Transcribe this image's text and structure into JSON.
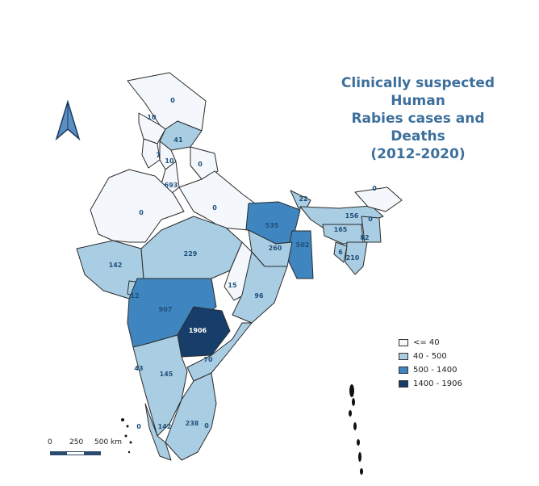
{
  "title": {
    "line1": "Clinically suspected Human",
    "line2": "Rabies cases and Deaths",
    "line3": "(2012-2020)"
  },
  "colors": {
    "class_1": "#f4f8fc",
    "class_2": "#a9cde3",
    "class_3": "#3f86c1",
    "class_4": "#173e6b",
    "border": "#2b2b2b",
    "title": "#3d6f9c",
    "label": "#1f4f7a"
  },
  "legend": [
    {
      "label": "<= 40",
      "color": "#f4f8fc"
    },
    {
      "label": "40 - 500",
      "color": "#a9cde3"
    },
    {
      "label": "500 - 1400",
      "color": "#3f86c1"
    },
    {
      "label": "1400 - 1906",
      "color": "#173e6b"
    }
  ],
  "scale_bar": {
    "ticks": [
      "0",
      "250",
      "500 km"
    ]
  },
  "north_arrow_icon": "north-arrow-icon",
  "region_values": [
    "0",
    "10",
    "41",
    "7",
    "10",
    "0",
    "693",
    "0",
    "0",
    "22",
    "0",
    "535",
    "156",
    "0",
    "165",
    "82",
    "502",
    "260",
    "6",
    "210",
    "142",
    "229",
    "12",
    "15",
    "96",
    "907",
    "1906",
    "70",
    "43",
    "145",
    "142",
    "238",
    "0",
    "0"
  ]
}
